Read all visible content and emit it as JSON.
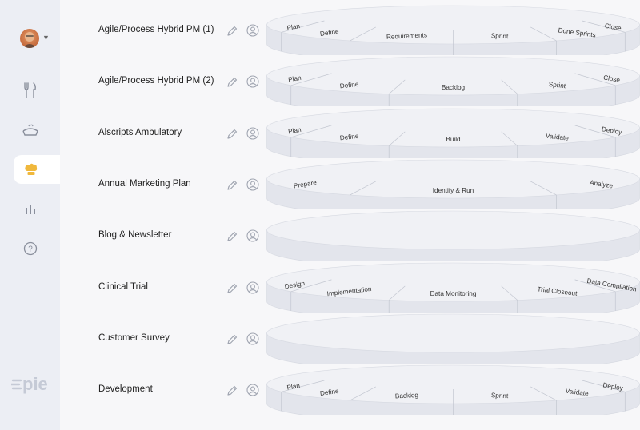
{
  "sidebar": {
    "avatar_icon": "user-avatar",
    "nav": [
      {
        "name": "fork-knife-icon",
        "active": false
      },
      {
        "name": "pie-icon",
        "active": false
      },
      {
        "name": "chef-hat-icon",
        "active": true
      },
      {
        "name": "bar-chart-icon",
        "active": false
      },
      {
        "name": "help-icon",
        "active": false
      }
    ],
    "logo_text": "pie"
  },
  "colors": {
    "accent": "#f0b83c",
    "disc_top": "#f0f1f5",
    "disc_side": "#e3e5ec",
    "divider": "#c2c6d0"
  },
  "projects": [
    {
      "label": "Agile/Process Hybrid PM (1)",
      "stages": [
        "Plan",
        "Define",
        "Requirements",
        "Sprint",
        "Done Sprints",
        "Close"
      ]
    },
    {
      "label": "Agile/Process Hybrid PM (2)",
      "stages": [
        "Plan",
        "Define",
        "Backlog",
        "Sprint",
        "Close"
      ]
    },
    {
      "label": "Alscripts Ambulatory",
      "stages": [
        "Plan",
        "Define",
        "Build",
        "Validate",
        "Deploy"
      ]
    },
    {
      "label": "Annual Marketing Plan",
      "stages": [
        "Prepare",
        "Identify & Run",
        "Analyze"
      ]
    },
    {
      "label": "Blog & Newsletter",
      "stages": []
    },
    {
      "label": "Clinical Trial",
      "stages": [
        "Design",
        "Implementation",
        "Data Monitoring",
        "Trial Closeout",
        "Data Compilation"
      ]
    },
    {
      "label": "Customer Survey",
      "stages": []
    },
    {
      "label": "Development",
      "stages": [
        "Plan",
        "Define",
        "Backlog",
        "Sprint",
        "Validate",
        "Deploy"
      ]
    }
  ]
}
